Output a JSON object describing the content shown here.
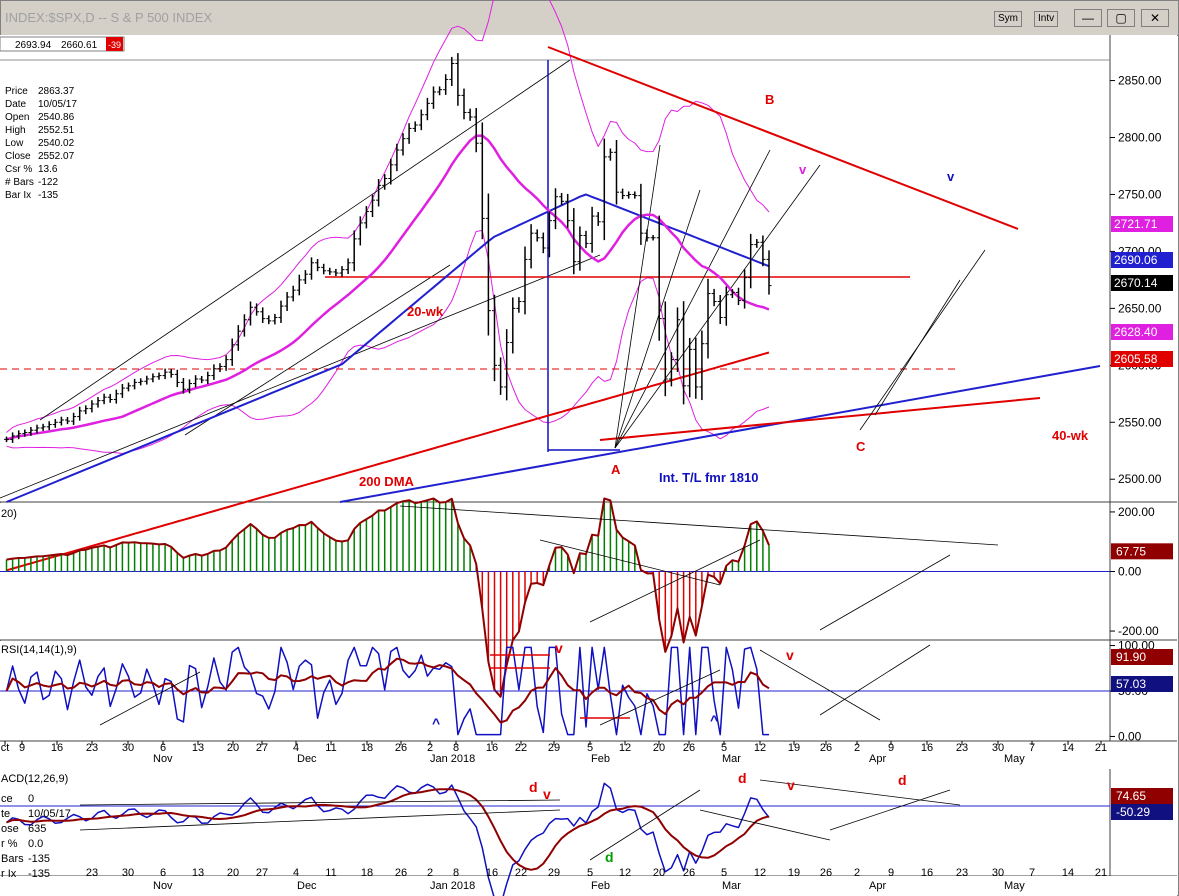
{
  "window": {
    "title": "INDEX:$SPX,D -- S & P 500 INDEX",
    "sym_label": "Sym",
    "intv_label": "Intv",
    "minimize_glyph": "—",
    "restore_glyph": "▢",
    "close_glyph": "✕"
  },
  "header_quotes": [
    "2693.94",
    "2660.61",
    "-39"
  ],
  "price_info": [
    {
      "label": "Price",
      "value": "2863.37"
    },
    {
      "label": "Date",
      "value": "10/05/17"
    },
    {
      "label": "Open",
      "value": "2540.86"
    },
    {
      "label": "High",
      "value": "2552.51"
    },
    {
      "label": "Low",
      "value": "2540.02"
    },
    {
      "label": "Close",
      "value": "2552.07"
    },
    {
      "label": "Csr %",
      "value": "13.6"
    },
    {
      "label": "# Bars",
      "value": "-122"
    },
    {
      "label": "Bar Ix",
      "value": "-135"
    }
  ],
  "macd_info": [
    {
      "label": "ce",
      "value": "0"
    },
    {
      "label": "te",
      "value": "10/05/17"
    },
    {
      "label": "ose",
      "value": "635"
    },
    {
      "label": "r % ",
      "value": "0.0"
    },
    {
      "label": "Bars",
      "value": "-135"
    },
    {
      "label": "r Ix",
      "value": "-135"
    }
  ],
  "colors": {
    "price_bar": "#000000",
    "ma20": "#e020e0",
    "ma20_bands": "#e020e0",
    "ma40wk": "#2020d0",
    "dma200": "#e00000",
    "intTL": "#2020d0",
    "osc_up": "#008000",
    "osc_down": "#e00000",
    "rsi_fast": "#1010c0",
    "rsi_slow": "#900000",
    "macd": "#1010c0",
    "macd_signal": "#900000",
    "axis_bg": "#ffffff"
  },
  "chart_data": [
    {
      "type": "line",
      "panel": "price",
      "ylim": [
        2480,
        2890
      ],
      "yticks": [
        "2850.00",
        "2800.00",
        "2750.00",
        "2700.00",
        "2650.00",
        "2600.00",
        "2550.00",
        "2500.00"
      ],
      "price_labels": [
        {
          "text": "2721.71",
          "color": "#e020e0",
          "fg": "#ffffff"
        },
        {
          "text": "2690.06",
          "color": "#2020d0",
          "fg": "#ffffff"
        },
        {
          "text": "2670.14",
          "color": "#000000",
          "fg": "#ffffff"
        },
        {
          "text": "2628.40",
          "color": "#e020e0",
          "fg": "#ffffff"
        },
        {
          "text": "2605.58",
          "color": "#e00000",
          "fg": "#ffffff"
        }
      ],
      "annotations": [
        {
          "text": "20-wk",
          "color": "#e00000"
        },
        {
          "text": "200 DMA",
          "color": "#e00000"
        },
        {
          "text": "Int. T/L fmr 1810",
          "color": "#1010c0"
        },
        {
          "text": "40-wk",
          "color": "#e00000"
        },
        {
          "text": "A",
          "color": "#e00000"
        },
        {
          "text": "B",
          "color": "#e00000"
        },
        {
          "text": "C",
          "color": "#e00000"
        },
        {
          "text": "v",
          "color": "#e020e0"
        },
        {
          "text": "v",
          "color": "#1010c0"
        }
      ],
      "series": [
        {
          "name": "price_close",
          "values": [
            2535,
            2538,
            2540,
            2541,
            2543,
            2545,
            2546,
            2548,
            2550,
            2552,
            2551,
            2555,
            2560,
            2562,
            2566,
            2569,
            2572,
            2570,
            2575,
            2580,
            2582,
            2585,
            2586,
            2588,
            2590,
            2591,
            2594,
            2592,
            2585,
            2579,
            2584,
            2588,
            2587,
            2591,
            2597,
            2599,
            2605,
            2618,
            2630,
            2640,
            2651,
            2647,
            2641,
            2639,
            2642,
            2652,
            2660,
            2666,
            2675,
            2680,
            2690,
            2686,
            2683,
            2682,
            2681,
            2684,
            2690,
            2711,
            2725,
            2735,
            2745,
            2758,
            2764,
            2776,
            2789,
            2799,
            2808,
            2811,
            2820,
            2830,
            2840,
            2842,
            2851,
            2865,
            2837,
            2822,
            2818,
            2795,
            2729,
            2648,
            2600,
            2581,
            2620,
            2650,
            2656,
            2693,
            2716,
            2712,
            2703,
            2727,
            2748,
            2744,
            2727,
            2691,
            2714,
            2707,
            2731,
            2726,
            2783,
            2787,
            2752,
            2749,
            2750,
            2749,
            2716,
            2712,
            2712,
            2641,
            2588,
            2605,
            2640,
            2582,
            2614,
            2581,
            2619,
            2663,
            2656,
            2642,
            2662,
            2664,
            2657,
            2677,
            2706,
            2708,
            2693,
            2670
          ]
        },
        {
          "name": "20-day MA",
          "values": []
        },
        {
          "name": "40-wk MA",
          "values": []
        },
        {
          "name": "200 DMA",
          "values": []
        }
      ]
    },
    {
      "type": "bar",
      "panel": "oscillator",
      "label": "20)",
      "ylim": [
        -230,
        230
      ],
      "yticks": [
        "200.00",
        "0.00",
        "-200.00"
      ],
      "current_label": {
        "text": "67.75",
        "color": "#900000",
        "fg": "#ffffff"
      }
    },
    {
      "type": "line",
      "panel": "rsi",
      "label": "RSI(14,14(1),9)",
      "ylim": [
        -5,
        105
      ],
      "yticks": [
        "100.00",
        "50.00",
        "0.00"
      ],
      "current_labels": [
        {
          "text": "91.90",
          "color": "#900000",
          "fg": "#ffffff"
        },
        {
          "text": "57.03",
          "color": "#101080",
          "fg": "#ffffff"
        }
      ],
      "annotations": [
        {
          "text": "^",
          "color": "#1010c0"
        },
        {
          "text": "v",
          "color": "#e00000"
        },
        {
          "text": "^",
          "color": "#1010c0"
        },
        {
          "text": "v",
          "color": "#e00000"
        }
      ]
    },
    {
      "type": "line",
      "panel": "macd",
      "label": "ACD(12,26,9)",
      "ylim": [
        -150,
        150
      ],
      "current_labels": [
        {
          "text": "74.65",
          "color": "#900000",
          "fg": "#ffffff"
        },
        {
          "text": "-50.29",
          "color": "#101080",
          "fg": "#ffffff"
        }
      ],
      "annotations": [
        {
          "text": "d",
          "color": "#e00000"
        },
        {
          "text": "v",
          "color": "#e00000"
        },
        {
          "text": "d",
          "color": "#00a000"
        },
        {
          "text": "d",
          "color": "#e00000"
        },
        {
          "text": "v",
          "color": "#e00000"
        },
        {
          "text": "d",
          "color": "#e00000"
        }
      ]
    }
  ],
  "x_axis": {
    "day_ticks": [
      "ct",
      "9",
      "16",
      "23",
      "30",
      "6",
      "13",
      "20",
      "27",
      "4",
      "11",
      "18",
      "26",
      "2",
      "8",
      "16",
      "22",
      "29",
      "5",
      "12",
      "20",
      "26",
      "5",
      "12",
      "19",
      "26",
      "2",
      "9",
      "16",
      "23",
      "30",
      "7",
      "14",
      "21"
    ],
    "month_labels": [
      "Nov",
      "Dec",
      "Jan 2018",
      "Feb",
      "Mar",
      "Apr",
      "May"
    ],
    "bottom_day_ticks": [
      "23",
      "30",
      "6",
      "13",
      "20",
      "27",
      "4",
      "11",
      "18",
      "26",
      "2",
      "8",
      "16",
      "22",
      "29",
      "5",
      "12",
      "20",
      "26",
      "5",
      "12",
      "19",
      "26",
      "2",
      "9",
      "16",
      "23",
      "30",
      "7",
      "14",
      "21"
    ]
  }
}
